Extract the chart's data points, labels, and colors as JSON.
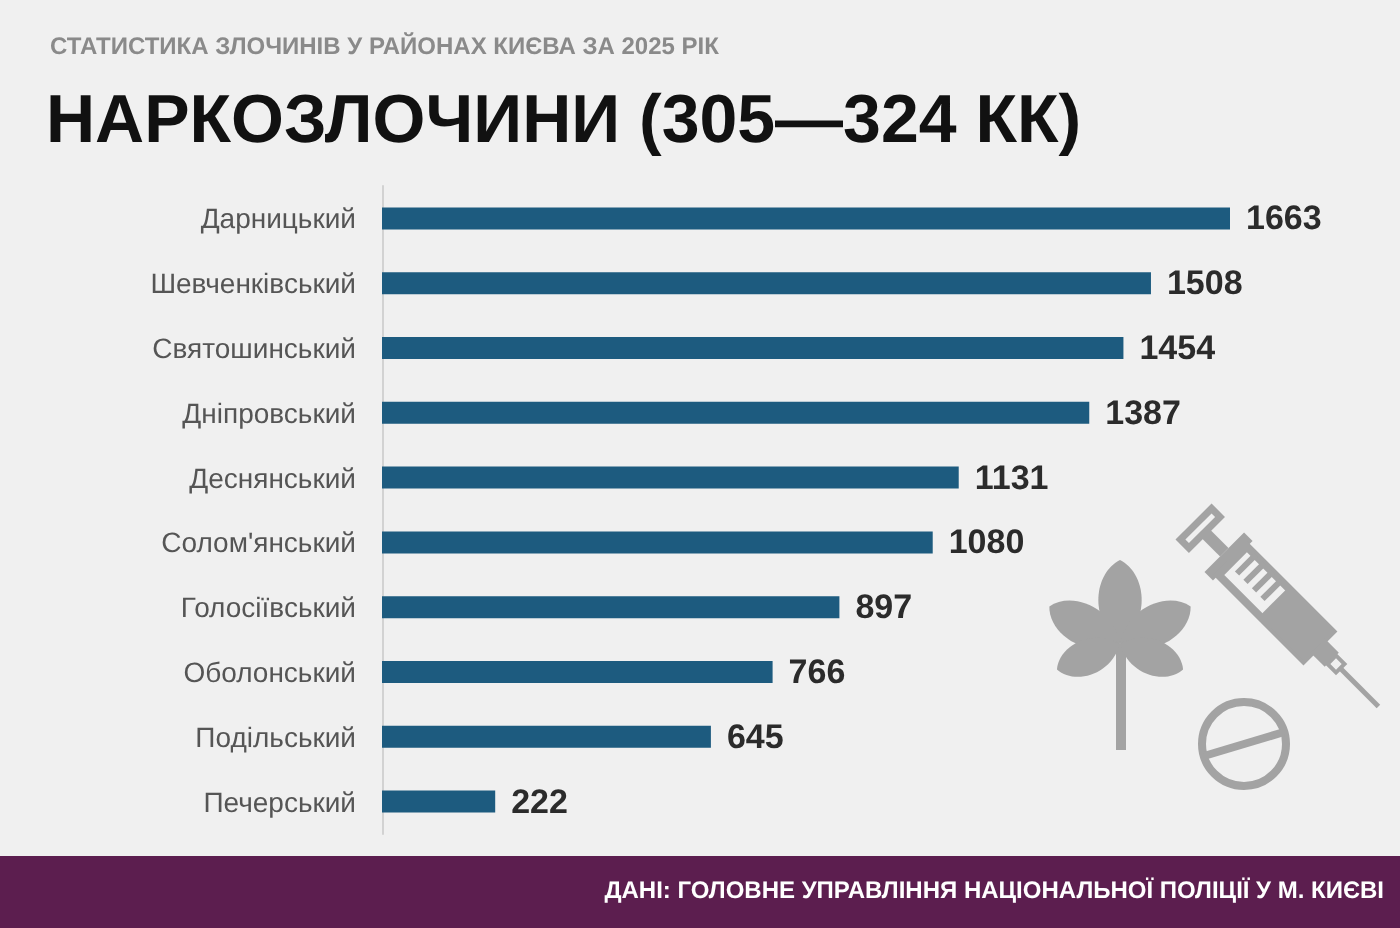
{
  "chart_data": {
    "type": "bar",
    "orientation": "horizontal",
    "title": "НАРКОЗЛОЧИНИ (305—324 КК)",
    "subtitle": "СТАТИСТИКА ЗЛОЧИНІВ У РАЙОНАХ КИЄВА ЗА 2025 РІК",
    "categories": [
      "Дарницький",
      "Шевченківський",
      "Святошинський",
      "Дніпровський",
      "Деснянський",
      "Солом'янський",
      "Голосіївський",
      "Оболонський",
      "Подільський",
      "Печерський"
    ],
    "values": [
      1663,
      1508,
      1454,
      1387,
      1131,
      1080,
      897,
      766,
      645,
      222
    ],
    "color": "#1d5b7f",
    "data_labels": true,
    "tick_labels": "y",
    "annotations": [
      "ДАНІ: ГОЛОВНЕ УПРАВЛІННЯ НАЦІОНАЛЬНОЇ ПОЛІЦІЇ У М. КИЄВІ"
    ]
  }
}
